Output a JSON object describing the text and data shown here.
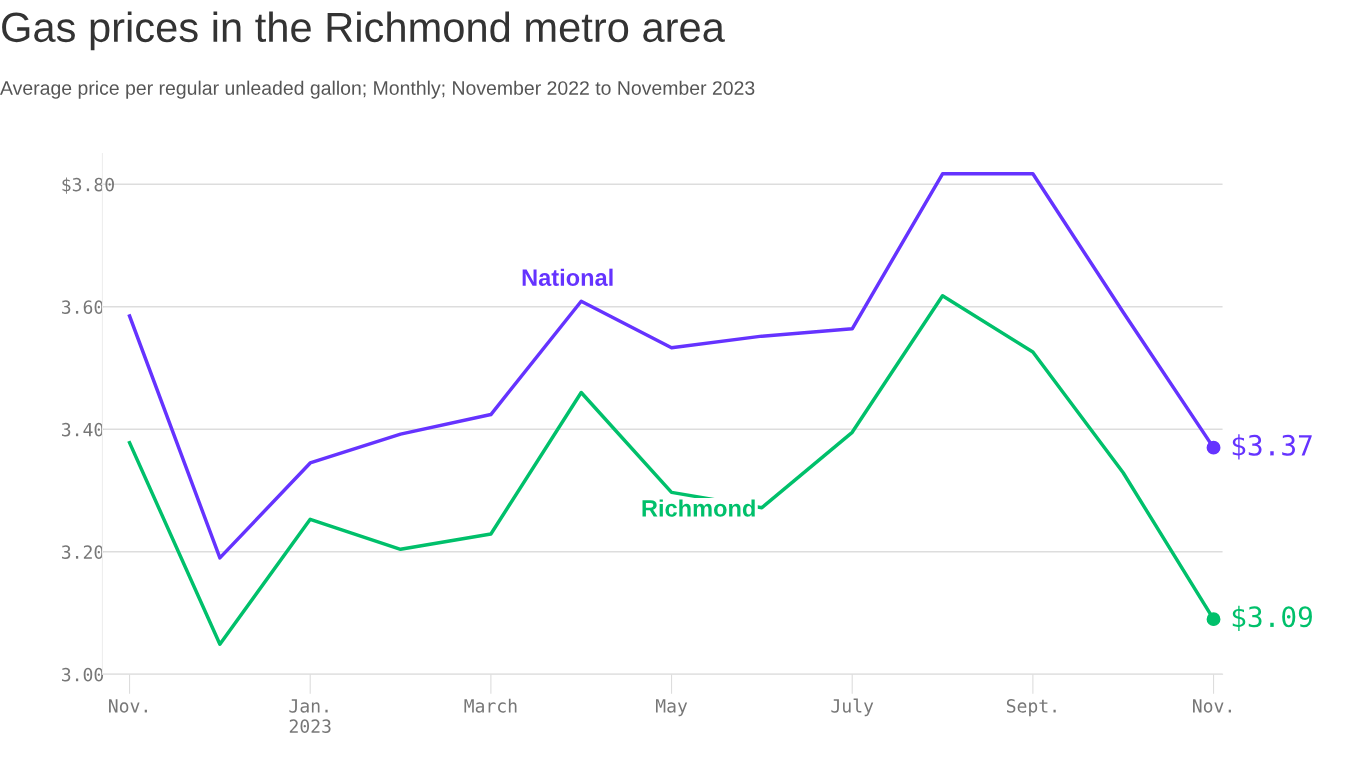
{
  "chart_data": {
    "type": "line",
    "title": "Gas prices in the Richmond metro area",
    "subtitle": "Average price per regular unleaded gallon; Monthly; November 2022 to November 2023",
    "categories": [
      "Nov.",
      null,
      "Jan.\n2023",
      null,
      "March",
      null,
      "May",
      null,
      "July",
      null,
      "Sept.",
      null,
      "Nov."
    ],
    "series": [
      {
        "name": "National",
        "color": "#6533ff",
        "values": [
          3.585,
          3.19,
          3.345,
          3.392,
          3.424,
          3.609,
          3.533,
          3.552,
          3.564,
          3.817,
          3.817,
          3.591,
          3.37
        ],
        "value_labels": [
          null,
          null,
          null,
          null,
          null,
          null,
          null,
          null,
          null,
          null,
          null,
          null,
          "$3.37"
        ]
      },
      {
        "name": "Richmond",
        "color": "#00c06b",
        "values": [
          3.378,
          3.049,
          3.253,
          3.204,
          3.229,
          3.46,
          3.297,
          3.272,
          3.395,
          3.618,
          3.526,
          3.329,
          3.09
        ],
        "value_labels": [
          null,
          null,
          null,
          null,
          null,
          null,
          null,
          null,
          null,
          null,
          null,
          null,
          "$3.09"
        ]
      }
    ],
    "ylim": [
      3.0,
      3.85
    ],
    "yticks": [
      {
        "value": 3.0,
        "label": "3.00"
      },
      {
        "value": 3.2,
        "label": "3.20"
      },
      {
        "value": 3.4,
        "label": "3.40"
      },
      {
        "value": 3.6,
        "label": "3.60"
      },
      {
        "value": 3.8,
        "label": "$3.80"
      }
    ],
    "grid": "y",
    "legend": false,
    "marker": "none",
    "line_style": "solid"
  }
}
